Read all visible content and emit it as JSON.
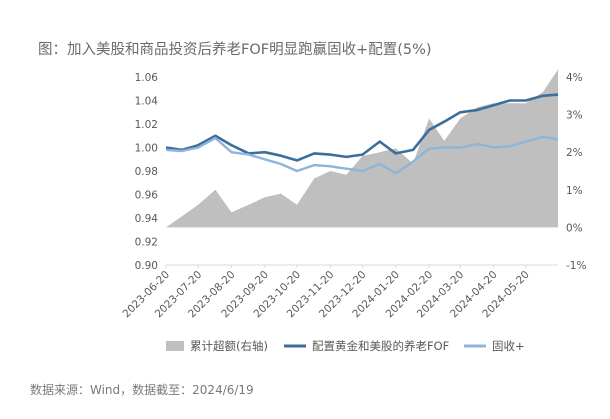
{
  "title": "图：加入美股和商品投资后养老FOF明显跑赢固收+配置(5%)",
  "source": "数据来源：Wind，数据截至：2024/6/19",
  "chart_data": {
    "type": "line",
    "x": [
      "2023-06-20",
      "2023-07-05",
      "2023-07-20",
      "2023-08-05",
      "2023-08-20",
      "2023-09-05",
      "2023-09-20",
      "2023-10-05",
      "2023-10-20",
      "2023-11-05",
      "2023-11-20",
      "2023-12-05",
      "2023-12-20",
      "2024-01-05",
      "2024-01-20",
      "2024-02-05",
      "2024-02-20",
      "2024-03-05",
      "2024-03-20",
      "2024-04-05",
      "2024-04-20",
      "2024-05-05",
      "2024-05-20",
      "2024-06-05",
      "2024-06-19"
    ],
    "xticks": [
      "2023-06-20",
      "2023-07-20",
      "2023-08-20",
      "2023-09-20",
      "2023-10-20",
      "2023-11-20",
      "2023-12-20",
      "2024-01-20",
      "2024-02-20",
      "2024-03-20",
      "2024-04-20",
      "2024-05-20"
    ],
    "series": [
      {
        "name": "累计超额(右轴)",
        "type": "area",
        "axis": "right",
        "color": "#bfbfbf",
        "values": [
          0.0,
          0.3,
          0.6,
          1.0,
          0.4,
          0.6,
          0.8,
          0.9,
          0.6,
          1.3,
          1.5,
          1.4,
          1.9,
          2.0,
          2.1,
          1.7,
          2.9,
          2.3,
          2.9,
          3.2,
          3.3,
          3.3,
          3.3,
          3.6,
          4.2
        ]
      },
      {
        "name": "配置黄金和美股的养老FOF",
        "type": "line",
        "axis": "left",
        "color": "#3c6e9c",
        "values": [
          1.0,
          0.998,
          1.002,
          1.01,
          1.002,
          0.995,
          0.996,
          0.993,
          0.989,
          0.995,
          0.994,
          0.992,
          0.994,
          1.005,
          0.995,
          0.998,
          1.015,
          1.022,
          1.03,
          1.032,
          1.036,
          1.04,
          1.04,
          1.044,
          1.045
        ]
      },
      {
        "name": "固收+",
        "type": "line",
        "axis": "left",
        "color": "#8fb4dc",
        "values": [
          0.998,
          0.997,
          1.0,
          1.008,
          0.996,
          0.994,
          0.99,
          0.986,
          0.98,
          0.985,
          0.984,
          0.982,
          0.98,
          0.986,
          0.978,
          0.988,
          0.999,
          1.0,
          1.0,
          1.003,
          1.0,
          1.001,
          1.005,
          1.009,
          1.007
        ]
      }
    ],
    "ylim": [
      0.9,
      1.06
    ],
    "yticks": [
      "0.90",
      "0.92",
      "0.94",
      "0.96",
      "0.98",
      "1.00",
      "1.02",
      "1.04",
      "1.06"
    ],
    "ylim_right": [
      -1,
      4
    ],
    "yticks_right": [
      "-1%",
      "0%",
      "1%",
      "2%",
      "3%",
      "4%"
    ],
    "legend_position": "bottom",
    "grid": false
  }
}
